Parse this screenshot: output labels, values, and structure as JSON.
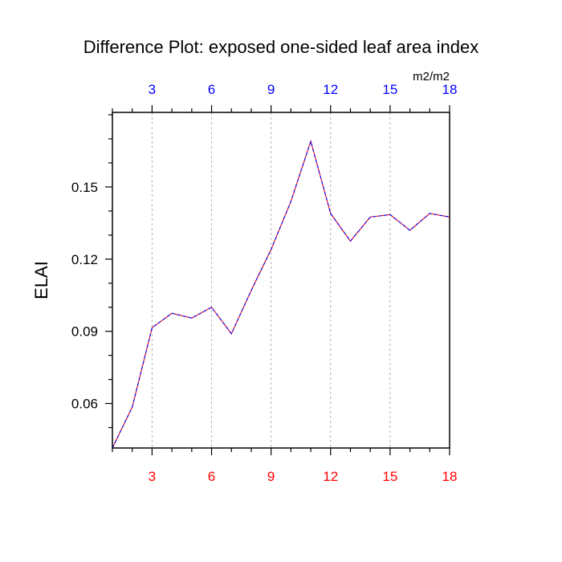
{
  "chart_data": {
    "type": "line",
    "title": "Difference Plot: exposed one-sided leaf area index",
    "units": "m2/m2",
    "ylabel": "ELAI",
    "xlabel": "",
    "xlim": [
      1,
      18
    ],
    "ylim": [
      0.0415,
      0.181
    ],
    "x_ticks": [
      3,
      6,
      9,
      12,
      15,
      18
    ],
    "x_tick_labels_bottom": [
      "3",
      "6",
      "9",
      "12",
      "15",
      "18"
    ],
    "x_tick_labels_top": [
      "3",
      "6",
      "9",
      "12",
      "15",
      "18"
    ],
    "y_ticks": [
      0.06,
      0.09,
      0.12,
      0.15
    ],
    "y_tick_labels": [
      "0.06",
      "0.09",
      "0.12",
      "0.15"
    ],
    "grid": "vertical dashed at x major ticks",
    "series": [
      {
        "x": [
          1,
          2,
          3,
          4,
          5,
          6,
          7,
          8,
          9,
          10,
          11,
          12,
          13,
          14,
          15,
          16,
          17,
          18
        ],
        "values": [
          0.0415,
          0.0585,
          0.0915,
          0.0975,
          0.0955,
          0.1,
          0.089,
          0.107,
          0.124,
          0.144,
          0.169,
          0.139,
          0.1275,
          0.1375,
          0.1385,
          0.132,
          0.139,
          0.1375
        ]
      }
    ],
    "colors": {
      "line_primary": "#ff0000",
      "line_secondary": "#0000ff",
      "bottom_tick_labels": "#ff0000",
      "top_tick_labels": "#0000ff",
      "grid": "#b4b4b4",
      "axes": "#000000"
    }
  }
}
